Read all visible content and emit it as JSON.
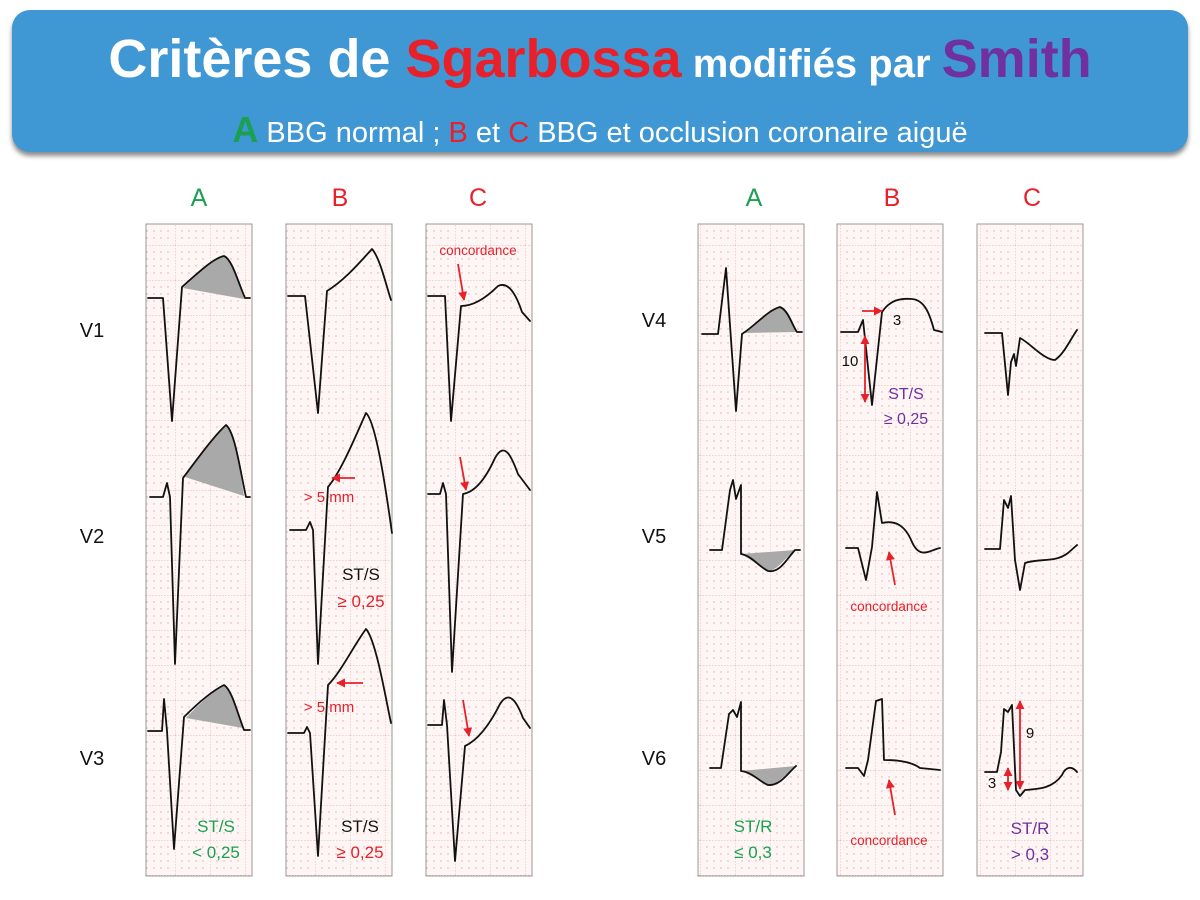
{
  "header": {
    "title_part1": "Critères de ",
    "title_part2": "Sgarbossa",
    "title_part3": " modifiés par ",
    "title_part4": "Smith",
    "subtitle_a_letter": "A",
    "subtitle_a_text": " BBG normal ; ",
    "subtitle_b_letter": "B",
    "subtitle_and": " et ",
    "subtitle_c_letter": "C",
    "subtitle_c_text": " BBG et occlusion coronaire aiguë"
  },
  "colors": {
    "banner": "#3f97d3",
    "green": "#1aa050",
    "red": "#e8202a",
    "purple": "#7030a0",
    "grid": "#e8a7a7",
    "paper": "#fdf6f4",
    "shade": "#a9a9a9"
  },
  "columns": {
    "left": [
      "A",
      "B",
      "C"
    ],
    "right": [
      "A",
      "B",
      "C"
    ]
  },
  "leads": {
    "left": [
      "V1",
      "V2",
      "V3"
    ],
    "right": [
      "V4",
      "V5",
      "V6"
    ]
  },
  "annotations": {
    "concordance": "concordance",
    "gt5mm": "> 5  mm",
    "st_s": "ST/S",
    "st_r": "ST/R",
    "lt_025": "< 0,25",
    "ge_025": "≥ 0,25",
    "le_03": "≤ 0,3",
    "gt_03": "> 0,3",
    "num_3": "3",
    "num_10": "10",
    "num_9": "9"
  }
}
